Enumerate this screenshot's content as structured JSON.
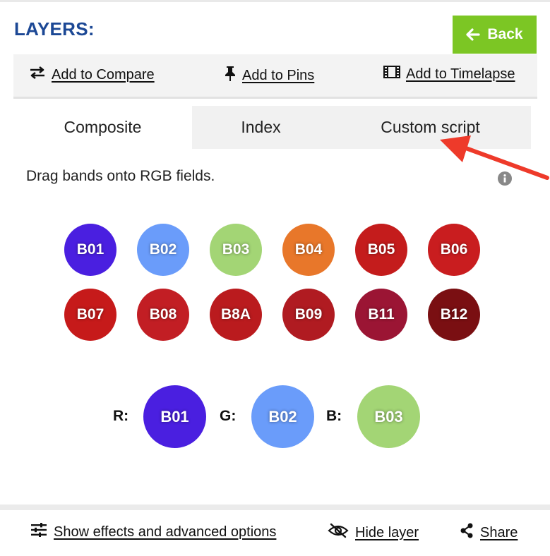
{
  "header": {
    "title": "LAYERS:",
    "back_label": "Back"
  },
  "toolbar": {
    "compare_label": "Add to Compare",
    "pins_label": "Add to Pins",
    "timelapse_label": "Add to Timelapse"
  },
  "tabs": [
    {
      "label": "Composite",
      "active": true
    },
    {
      "label": "Index",
      "active": false
    },
    {
      "label": "Custom script",
      "active": false
    }
  ],
  "instruction": "Drag bands onto RGB fields.",
  "bands": [
    {
      "label": "B01",
      "color": "#4a1fe0"
    },
    {
      "label": "B02",
      "color": "#6a9cfa"
    },
    {
      "label": "B03",
      "color": "#a3d575"
    },
    {
      "label": "B04",
      "color": "#e8772a"
    },
    {
      "label": "B05",
      "color": "#c41c1c"
    },
    {
      "label": "B06",
      "color": "#c91d1f"
    },
    {
      "label": "B07",
      "color": "#c61a1a"
    },
    {
      "label": "B08",
      "color": "#c21e24"
    },
    {
      "label": "B8A",
      "color": "#ba1b1e"
    },
    {
      "label": "B09",
      "color": "#b01b21"
    },
    {
      "label": "B11",
      "color": "#9b1534"
    },
    {
      "label": "B12",
      "color": "#7a0f12"
    }
  ],
  "rgb": {
    "r_label": "R:",
    "g_label": "G:",
    "b_label": "B:",
    "r_value": "B01",
    "g_value": "B02",
    "b_value": "B03",
    "r_color": "#4a1fe0",
    "g_color": "#6a9cfa",
    "b_color": "#a3d575"
  },
  "bottom": {
    "effects_label": "Show effects and advanced options",
    "hide_label": "Hide layer",
    "share_label": "Share"
  },
  "colors": {
    "accent_title": "#1c4895",
    "back_button": "#7cc624",
    "annotation_arrow": "#ee3a2a"
  }
}
